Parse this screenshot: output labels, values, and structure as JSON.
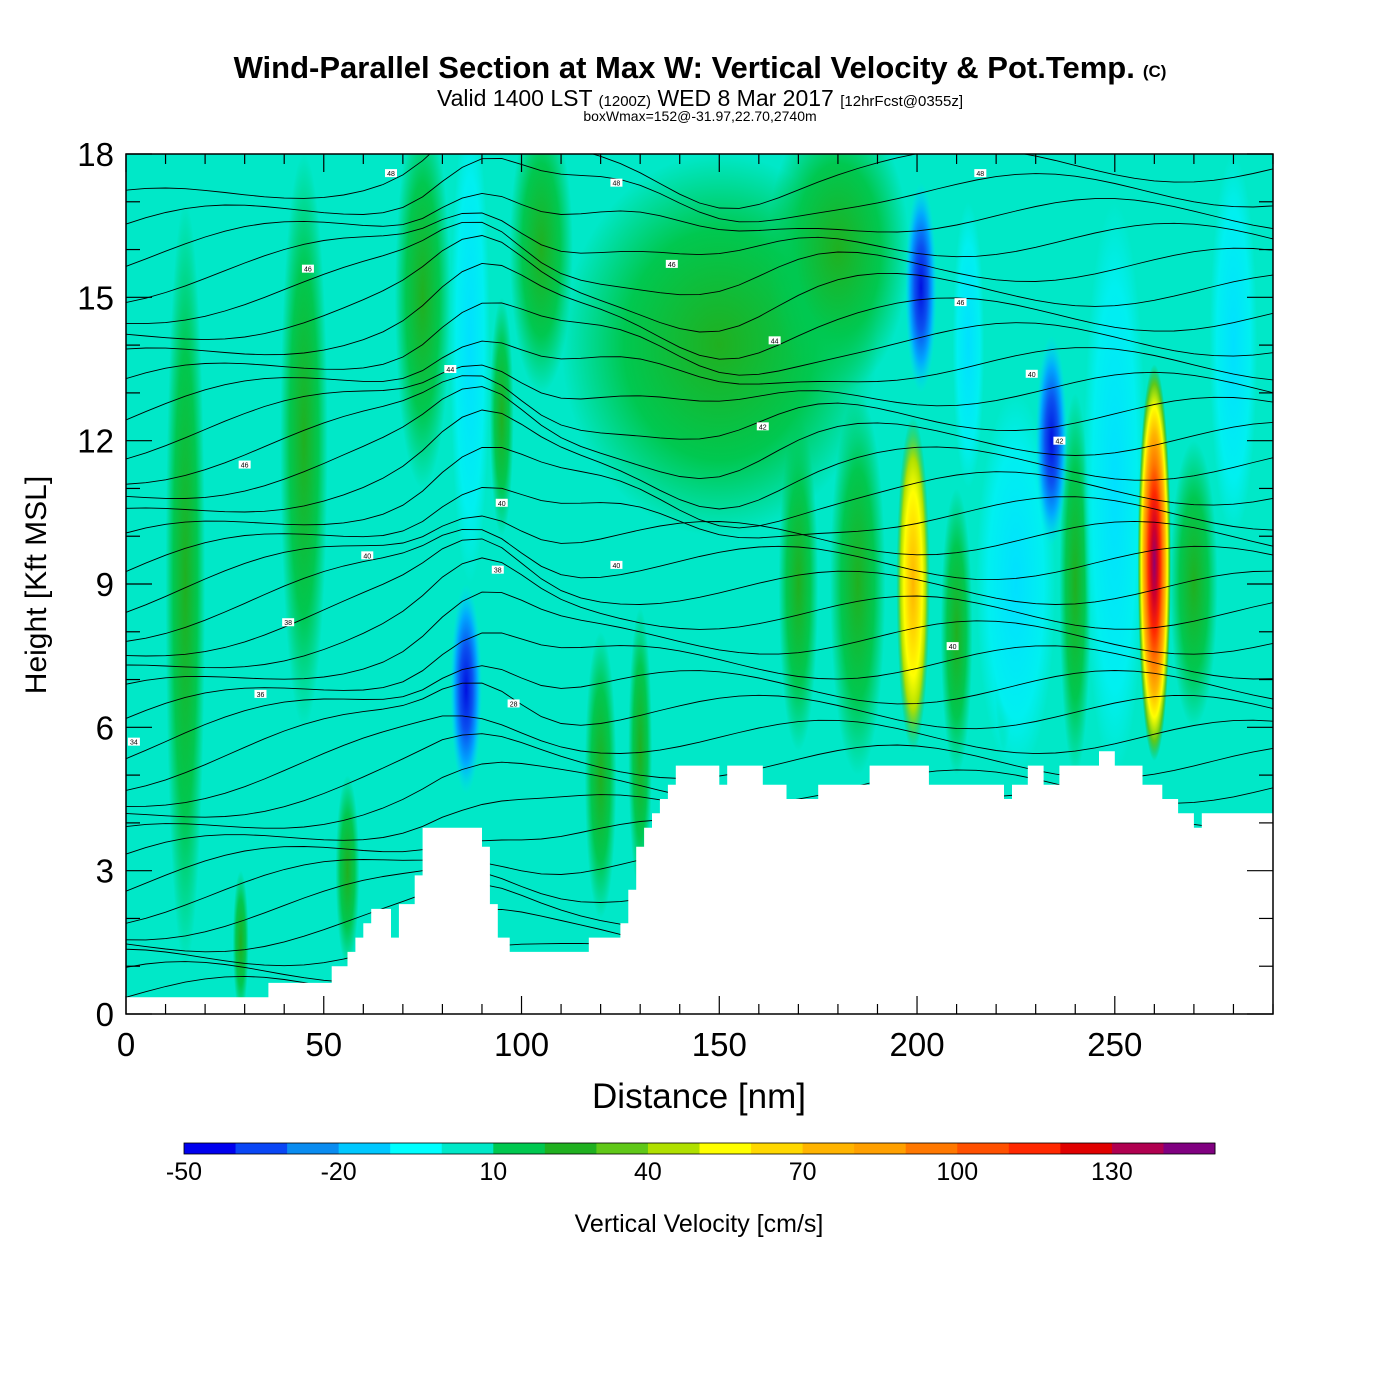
{
  "header": {
    "title": "Wind-Parallel Section at Max W: Vertical Velocity & Pot.Temp.",
    "copyright": "(C)",
    "subtitle_a": "Valid 1400 LST",
    "subtitle_b": "(1200Z)",
    "subtitle_c": "WED 8 Mar 2017",
    "subtitle_d": "[12hrFcst@0355z]",
    "subtitle2": "boxWmax=152@-31.97,22.70,2740m"
  },
  "chart_data": {
    "type": "heatmap",
    "xlabel": "Distance [nm]",
    "ylabel": "Height [Kft MSL]",
    "xlim": [
      0,
      290
    ],
    "ylim": [
      0,
      18
    ],
    "x_ticks": [
      0,
      50,
      100,
      150,
      200,
      250
    ],
    "y_ticks": [
      0,
      3,
      6,
      9,
      12,
      15,
      18
    ],
    "colorbar": {
      "label": "Vertical Velocity [cm/s]",
      "levels": [
        -50,
        -40,
        -30,
        -20,
        -10,
        0,
        10,
        20,
        30,
        40,
        50,
        60,
        70,
        80,
        90,
        100,
        110,
        120,
        130,
        140,
        150
      ],
      "tick_labels": [
        "-50",
        "-20",
        "10",
        "40",
        "70",
        "100",
        "130"
      ],
      "tick_values": [
        -50,
        -20,
        10,
        40,
        70,
        100,
        130
      ],
      "colors": [
        "#0000ee",
        "#0a46f5",
        "#0a8cf0",
        "#00c8ff",
        "#00ffff",
        "#00e8c8",
        "#00c850",
        "#20b020",
        "#60c818",
        "#b0e000",
        "#ffff00",
        "#ffd800",
        "#ffb400",
        "#ffa000",
        "#ff7800",
        "#ff5000",
        "#ff2800",
        "#e00000",
        "#b00050",
        "#800080"
      ]
    },
    "terrain": [
      [
        0,
        0.35
      ],
      [
        36,
        0.35
      ],
      [
        36,
        0.65
      ],
      [
        52,
        0.65
      ],
      [
        52,
        1.0
      ],
      [
        56,
        1.0
      ],
      [
        56,
        1.3
      ],
      [
        58,
        1.3
      ],
      [
        58,
        1.6
      ],
      [
        60,
        1.6
      ],
      [
        60,
        1.9
      ],
      [
        62,
        1.9
      ],
      [
        62,
        2.2
      ],
      [
        67,
        2.2
      ],
      [
        67,
        1.6
      ],
      [
        69,
        1.6
      ],
      [
        69,
        2.3
      ],
      [
        71,
        2.3
      ],
      [
        71,
        2.3
      ],
      [
        73,
        2.3
      ],
      [
        73,
        2.9
      ],
      [
        75,
        2.9
      ],
      [
        75,
        3.9
      ],
      [
        90,
        3.9
      ],
      [
        90,
        3.5
      ],
      [
        92,
        3.5
      ],
      [
        92,
        2.3
      ],
      [
        94,
        2.3
      ],
      [
        94,
        1.6
      ],
      [
        97,
        1.6
      ],
      [
        97,
        1.3
      ],
      [
        117,
        1.3
      ],
      [
        117,
        1.6
      ],
      [
        125,
        1.6
      ],
      [
        125,
        1.9
      ],
      [
        127,
        1.9
      ],
      [
        127,
        2.6
      ],
      [
        129,
        2.6
      ],
      [
        129,
        3.5
      ],
      [
        131,
        3.5
      ],
      [
        131,
        3.9
      ],
      [
        133,
        3.9
      ],
      [
        133,
        4.2
      ],
      [
        135,
        4.2
      ],
      [
        135,
        4.5
      ],
      [
        137,
        4.5
      ],
      [
        137,
        4.8
      ],
      [
        139,
        4.8
      ],
      [
        139,
        5.2
      ],
      [
        150,
        5.2
      ],
      [
        150,
        4.8
      ],
      [
        152,
        4.8
      ],
      [
        152,
        5.2
      ],
      [
        161,
        5.2
      ],
      [
        161,
        4.8
      ],
      [
        163,
        4.8
      ],
      [
        163,
        4.8
      ],
      [
        167,
        4.8
      ],
      [
        167,
        4.5
      ],
      [
        175,
        4.5
      ],
      [
        175,
        4.8
      ],
      [
        188,
        4.8
      ],
      [
        188,
        5.2
      ],
      [
        203,
        5.2
      ],
      [
        203,
        4.8
      ],
      [
        222,
        4.8
      ],
      [
        222,
        4.5
      ],
      [
        224,
        4.5
      ],
      [
        224,
        4.8
      ],
      [
        228,
        4.8
      ],
      [
        228,
        5.2
      ],
      [
        230,
        5.2
      ],
      [
        230,
        5.2
      ],
      [
        232,
        5.2
      ],
      [
        232,
        4.8
      ],
      [
        236,
        4.8
      ],
      [
        236,
        5.2
      ],
      [
        246,
        5.2
      ],
      [
        246,
        5.5
      ],
      [
        250,
        5.5
      ],
      [
        250,
        5.2
      ],
      [
        257,
        5.2
      ],
      [
        257,
        4.8
      ],
      [
        262,
        4.8
      ],
      [
        262,
        4.5
      ],
      [
        266,
        4.5
      ],
      [
        266,
        4.2
      ],
      [
        270,
        4.2
      ],
      [
        270,
        3.9
      ],
      [
        272,
        3.9
      ],
      [
        272,
        4.2
      ],
      [
        290,
        4.2
      ]
    ],
    "updrafts": [
      {
        "x": 199,
        "y_bottom": 5.5,
        "y_top": 12.5,
        "max": 75
      },
      {
        "x": 260,
        "y_bottom": 5.3,
        "y_top": 13.6,
        "max": 152
      }
    ],
    "downdrafts": [
      {
        "x": 86,
        "y": 6.8,
        "min": -45
      },
      {
        "x": 201,
        "y": 15.2,
        "min": -45
      },
      {
        "x": 234,
        "y": 12.0,
        "min": -35
      }
    ],
    "theta_labels": [
      {
        "x": 2,
        "y": 5.7,
        "text": "34"
      },
      {
        "x": 34,
        "y": 6.7,
        "text": "36"
      },
      {
        "x": 41,
        "y": 8.2,
        "text": "38"
      },
      {
        "x": 61,
        "y": 9.6,
        "text": "40"
      },
      {
        "x": 30,
        "y": 11.5,
        "text": "46"
      },
      {
        "x": 94,
        "y": 9.3,
        "text": "38"
      },
      {
        "x": 95,
        "y": 10.7,
        "text": "40"
      },
      {
        "x": 98,
        "y": 6.5,
        "text": "28"
      },
      {
        "x": 82,
        "y": 13.5,
        "text": "44"
      },
      {
        "x": 46,
        "y": 15.6,
        "text": "46"
      },
      {
        "x": 67,
        "y": 17.6,
        "text": "48"
      },
      {
        "x": 124,
        "y": 17.4,
        "text": "48"
      },
      {
        "x": 138,
        "y": 15.7,
        "text": "46"
      },
      {
        "x": 164,
        "y": 14.1,
        "text": "44"
      },
      {
        "x": 161,
        "y": 12.3,
        "text": "42"
      },
      {
        "x": 124,
        "y": 9.4,
        "text": "40"
      },
      {
        "x": 209,
        "y": 7.7,
        "text": "40"
      },
      {
        "x": 211,
        "y": 14.9,
        "text": "46"
      },
      {
        "x": 216,
        "y": 17.6,
        "text": "48"
      },
      {
        "x": 229,
        "y": 13.4,
        "text": "40"
      },
      {
        "x": 236,
        "y": 12.0,
        "text": "42"
      }
    ]
  }
}
